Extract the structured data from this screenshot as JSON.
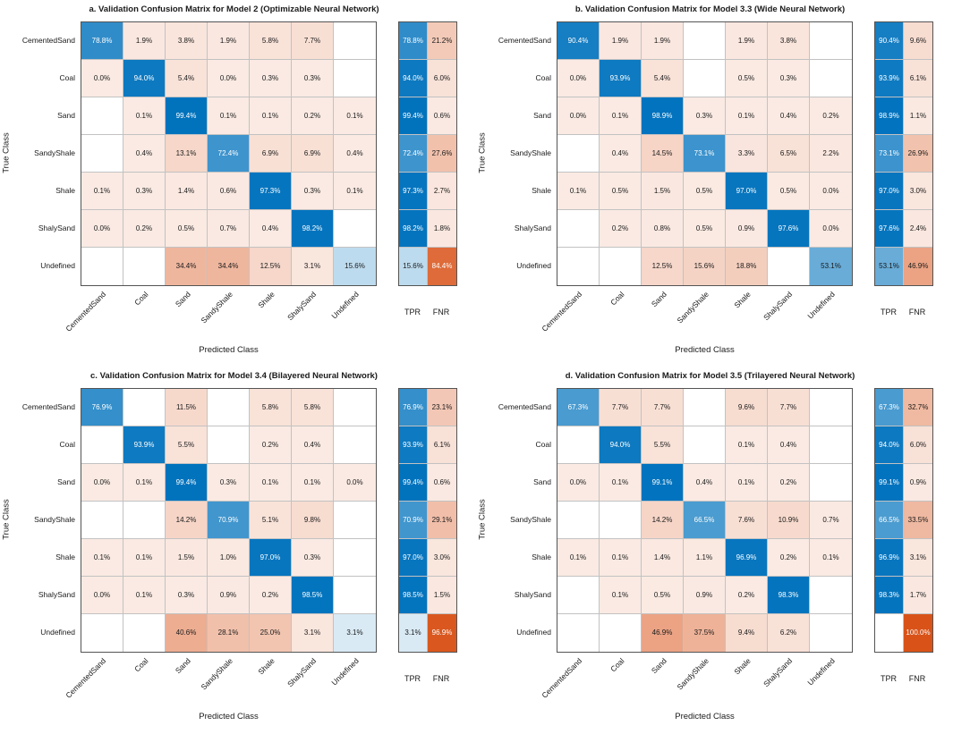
{
  "colors": {
    "diagonal": "#0072BD",
    "off_diagonal": "#D95319",
    "grid_line": "#c2c2c2",
    "box_border": "#545454",
    "background": "#ffffff"
  },
  "chart_data": [
    {
      "type": "heatmap",
      "title": "a. Validation Confusion Matrix for Model 2 (Optimizable Neural Network)",
      "xlabel": "Predicted Class",
      "ylabel": "True Class",
      "classes": [
        "CementedSand",
        "Coal",
        "Sand",
        "SandyShale",
        "Shale",
        "ShalySand",
        "Undefined"
      ],
      "summary_columns": [
        "TPR",
        "FNR"
      ],
      "matrix": [
        [
          78.8,
          1.9,
          3.8,
          1.9,
          5.8,
          7.7,
          null
        ],
        [
          0.0,
          94.0,
          5.4,
          0.0,
          0.3,
          0.3,
          null
        ],
        [
          null,
          0.1,
          99.4,
          0.1,
          0.1,
          0.2,
          0.1
        ],
        [
          null,
          0.4,
          13.1,
          72.4,
          6.9,
          6.9,
          0.4
        ],
        [
          0.1,
          0.3,
          1.4,
          0.6,
          97.3,
          0.3,
          0.1
        ],
        [
          0.0,
          0.2,
          0.5,
          0.7,
          0.4,
          98.2,
          null
        ],
        [
          null,
          null,
          34.4,
          34.4,
          12.5,
          3.1,
          15.6
        ]
      ],
      "tpr": [
        78.8,
        94.0,
        99.4,
        72.4,
        97.3,
        98.2,
        15.6
      ],
      "fnr": [
        21.2,
        6.0,
        0.6,
        27.6,
        2.7,
        1.8,
        84.4
      ]
    },
    {
      "type": "heatmap",
      "title": "b. Validation Confusion Matrix for Model 3.3 (Wide Neural Network)",
      "xlabel": "Predicted Class",
      "ylabel": "True Class",
      "classes": [
        "CementedSand",
        "Coal",
        "Sand",
        "SandyShale",
        "Shale",
        "ShalySand",
        "Undefined"
      ],
      "summary_columns": [
        "TPR",
        "FNR"
      ],
      "matrix": [
        [
          90.4,
          1.9,
          1.9,
          null,
          1.9,
          3.8,
          null
        ],
        [
          0.0,
          93.9,
          5.4,
          null,
          0.5,
          0.3,
          null
        ],
        [
          0.0,
          0.1,
          98.9,
          0.3,
          0.1,
          0.4,
          0.2
        ],
        [
          null,
          0.4,
          14.5,
          73.1,
          3.3,
          6.5,
          2.2
        ],
        [
          0.1,
          0.5,
          1.5,
          0.5,
          97.0,
          0.5,
          0.0
        ],
        [
          null,
          0.2,
          0.8,
          0.5,
          0.9,
          97.6,
          0.0
        ],
        [
          null,
          null,
          12.5,
          15.6,
          18.8,
          null,
          53.1
        ]
      ],
      "tpr": [
        90.4,
        93.9,
        98.9,
        73.1,
        97.0,
        97.6,
        53.1
      ],
      "fnr": [
        9.6,
        6.1,
        1.1,
        26.9,
        3.0,
        2.4,
        46.9
      ]
    },
    {
      "type": "heatmap",
      "title": "c. Validation Confusion Matrix for Model 3.4 (Bilayered Neural Network)",
      "xlabel": "Predicted Class",
      "ylabel": "True Class",
      "classes": [
        "CementedSand",
        "Coal",
        "Sand",
        "SandyShale",
        "Shale",
        "ShalySand",
        "Undefined"
      ],
      "summary_columns": [
        "TPR",
        "FNR"
      ],
      "matrix": [
        [
          76.9,
          null,
          11.5,
          null,
          5.8,
          5.8,
          null
        ],
        [
          null,
          93.9,
          5.5,
          null,
          0.2,
          0.4,
          null
        ],
        [
          0.0,
          0.1,
          99.4,
          0.3,
          0.1,
          0.1,
          0.0
        ],
        [
          null,
          null,
          14.2,
          70.9,
          5.1,
          9.8,
          null
        ],
        [
          0.1,
          0.1,
          1.5,
          1.0,
          97.0,
          0.3,
          null
        ],
        [
          0.0,
          0.1,
          0.3,
          0.9,
          0.2,
          98.5,
          null
        ],
        [
          null,
          null,
          40.6,
          28.1,
          25.0,
          3.1,
          3.1
        ]
      ],
      "tpr": [
        76.9,
        93.9,
        99.4,
        70.9,
        97.0,
        98.5,
        3.1
      ],
      "fnr": [
        23.1,
        6.1,
        0.6,
        29.1,
        3.0,
        1.5,
        96.9
      ]
    },
    {
      "type": "heatmap",
      "title": "d. Validation Confusion Matrix for Model 3.5 (Trilayered Neural Network)",
      "xlabel": "Predicted Class",
      "ylabel": "True Class",
      "classes": [
        "CementedSand",
        "Coal",
        "Sand",
        "SandyShale",
        "Shale",
        "ShalySand",
        "Undefined"
      ],
      "summary_columns": [
        "TPR",
        "FNR"
      ],
      "matrix": [
        [
          67.3,
          7.7,
          7.7,
          null,
          9.6,
          7.7,
          null
        ],
        [
          null,
          94.0,
          5.5,
          null,
          0.1,
          0.4,
          null
        ],
        [
          0.0,
          0.1,
          99.1,
          0.4,
          0.1,
          0.2,
          null
        ],
        [
          null,
          null,
          14.2,
          66.5,
          7.6,
          10.9,
          0.7
        ],
        [
          0.1,
          0.1,
          1.4,
          1.1,
          96.9,
          0.2,
          0.1
        ],
        [
          null,
          0.1,
          0.5,
          0.9,
          0.2,
          98.3,
          null
        ],
        [
          null,
          null,
          46.9,
          37.5,
          9.4,
          6.2,
          null
        ]
      ],
      "tpr": [
        67.3,
        94.0,
        99.1,
        66.5,
        96.9,
        98.3,
        null
      ],
      "fnr": [
        32.7,
        6.0,
        0.9,
        33.5,
        3.1,
        1.7,
        100.0
      ]
    }
  ]
}
